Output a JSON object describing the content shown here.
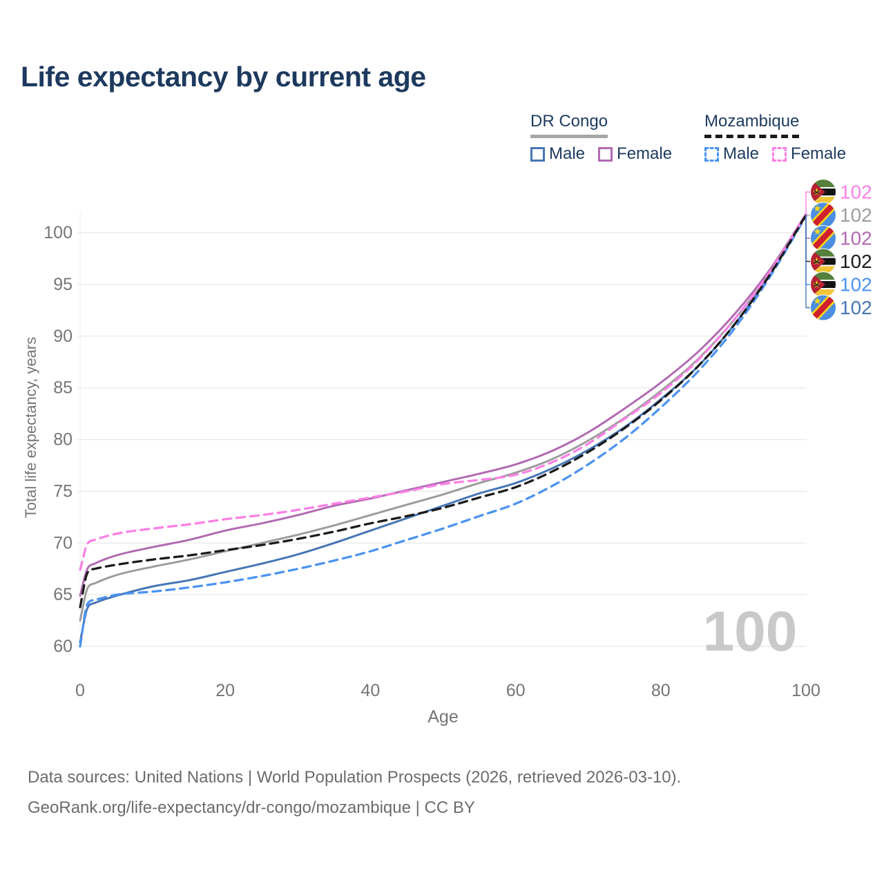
{
  "header": {
    "title": "Life expectancy by current age"
  },
  "legend": {
    "groups": [
      {
        "label": "DR Congo",
        "line_style": "solid",
        "underline_color": "#a6a6a6",
        "items": [
          {
            "label": "Male",
            "color": "#4576b5"
          },
          {
            "label": "Female",
            "color": "#b16ab1"
          }
        ]
      },
      {
        "label": "Mozambique",
        "line_style": "dashed",
        "underline_color": "#1a1a1a",
        "items": [
          {
            "label": "Male",
            "color": "#4b93f0"
          },
          {
            "label": "Female",
            "color": "#fb80e5"
          }
        ]
      }
    ]
  },
  "chart_data": {
    "type": "line",
    "title": "Life expectancy by current age",
    "xlabel": "Age",
    "ylabel": "Total life expectancy, years",
    "xlim": [
      0,
      100
    ],
    "ylim": [
      60,
      102
    ],
    "xticks": [
      0,
      20,
      40,
      60,
      80,
      100
    ],
    "yticks": [
      60,
      65,
      70,
      75,
      80,
      85,
      90,
      95,
      100
    ],
    "grid": "horizontal",
    "legend_position": "top-right",
    "watermark": "100",
    "x": [
      0,
      1,
      2,
      5,
      10,
      15,
      20,
      25,
      30,
      35,
      40,
      45,
      50,
      55,
      60,
      65,
      70,
      75,
      80,
      85,
      90,
      95,
      100
    ],
    "series": [
      {
        "name": "DR Congo Male",
        "country": "DR Congo",
        "sex": "Male",
        "color": "#4576b5",
        "dash": false,
        "values": [
          60.4,
          63.7,
          64.2,
          64.9,
          65.8,
          66.4,
          67.2,
          68.0,
          68.9,
          70.0,
          71.2,
          72.4,
          73.6,
          74.8,
          75.8,
          77.2,
          79.0,
          81.2,
          83.9,
          87.0,
          91.0,
          95.9,
          101.7
        ]
      },
      {
        "name": "DR Congo Female",
        "country": "DR Congo",
        "sex": "Female",
        "color": "#b16ab1",
        "dash": false,
        "values": [
          64.9,
          67.5,
          68.0,
          68.8,
          69.6,
          70.3,
          71.2,
          71.9,
          72.7,
          73.6,
          74.3,
          75.1,
          75.9,
          76.7,
          77.6,
          78.9,
          80.7,
          83.0,
          85.5,
          88.4,
          92.0,
          96.4,
          101.8
        ]
      },
      {
        "name": "DR Congo Both sexes",
        "country": "DR Congo",
        "sex": "Both",
        "color": "#9c9c9c",
        "dash": false,
        "values": [
          62.5,
          65.6,
          66.1,
          66.9,
          67.7,
          68.4,
          69.2,
          70.0,
          70.8,
          71.7,
          72.7,
          73.7,
          74.7,
          75.8,
          76.8,
          78.1,
          79.9,
          82.1,
          84.7,
          87.7,
          91.5,
          96.1,
          101.7
        ]
      },
      {
        "name": "Mozambique Male",
        "country": "Mozambique",
        "sex": "Male",
        "color": "#4b93f0",
        "dash": true,
        "values": [
          60.0,
          64.1,
          64.5,
          65.0,
          65.3,
          65.7,
          66.2,
          66.8,
          67.5,
          68.3,
          69.2,
          70.3,
          71.4,
          72.6,
          73.8,
          75.5,
          77.6,
          80.1,
          83.1,
          86.5,
          90.6,
          95.7,
          101.6
        ]
      },
      {
        "name": "Mozambique Female",
        "country": "Mozambique",
        "sex": "Female",
        "color": "#fb80e5",
        "dash": true,
        "values": [
          67.4,
          69.9,
          70.3,
          70.9,
          71.4,
          71.8,
          72.3,
          72.7,
          73.2,
          73.8,
          74.4,
          75.0,
          75.7,
          76.1,
          76.6,
          77.8,
          79.6,
          82.0,
          84.5,
          87.6,
          91.5,
          96.2,
          101.8
        ]
      },
      {
        "name": "Mozambique Both sexes",
        "country": "Mozambique",
        "sex": "Both",
        "color": "#1a1a1a",
        "dash": true,
        "values": [
          63.8,
          67.1,
          67.5,
          67.9,
          68.4,
          68.8,
          69.3,
          69.8,
          70.4,
          71.1,
          71.9,
          72.6,
          73.4,
          74.4,
          75.4,
          76.9,
          78.8,
          81.1,
          83.8,
          87.0,
          91.0,
          95.9,
          101.7
        ]
      }
    ],
    "end_labels": [
      {
        "series": "Mozambique Female",
        "text": "102"
      },
      {
        "series": "DR Congo Both sexes",
        "text": "102"
      },
      {
        "series": "DR Congo Female",
        "text": "102"
      },
      {
        "series": "Mozambique Both sexes",
        "text": "102"
      },
      {
        "series": "Mozambique Male",
        "text": "102"
      },
      {
        "series": "DR Congo Male",
        "text": "102"
      }
    ]
  },
  "footer": {
    "line1": "Data sources: United Nations | World Population Prospects (2026, retrieved 2026-03-10).",
    "line2": "GeoRank.org/life-expectancy/dr-congo/mozambique | CC BY"
  },
  "colors": {
    "title": "#1d3a5e",
    "axis_text": "#757575",
    "grid": "#e8e8e8",
    "watermark": "#c9c9c9",
    "footer_text": "#6b6b6b"
  }
}
